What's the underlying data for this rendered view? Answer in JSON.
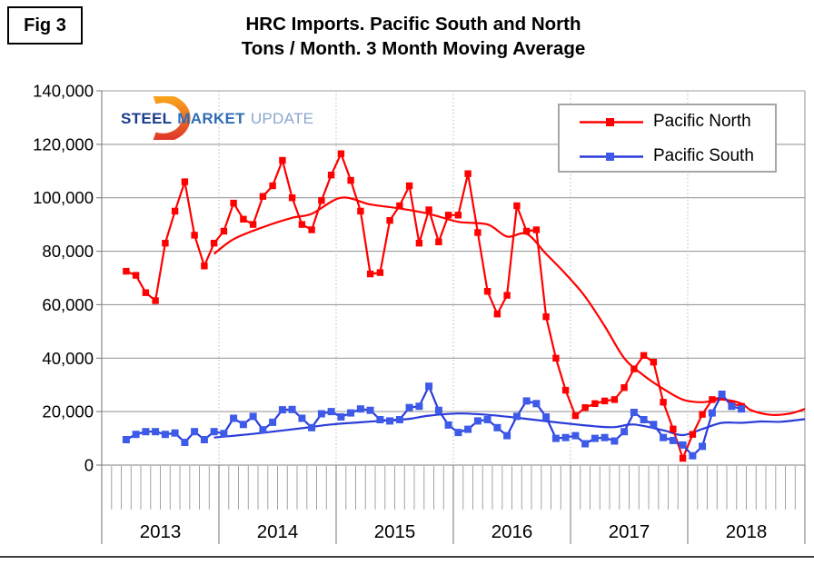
{
  "fig_label": "Fig 3",
  "title": {
    "line1": "HRC Imports. Pacific South and North",
    "line2": "Tons / Month. 3 Month Moving Average"
  },
  "logo": {
    "words": [
      {
        "text": "STEEL",
        "color": "#1B3C8C"
      },
      {
        "text": "MARKET",
        "color": "#2F6DB5"
      },
      {
        "text": "UPDATE",
        "color": "#8AA7CE"
      }
    ],
    "crescent_top_color": "#F9A21B",
    "crescent_bottom_color": "#E13A28"
  },
  "legend": {
    "items": [
      {
        "label": "Pacific North",
        "color": "#FF0000",
        "marker_color": "#FF0000"
      },
      {
        "label": "Pacific South",
        "color": "#2B3CD9",
        "marker_color": "#3D5BE8"
      }
    ]
  },
  "chart_data": {
    "type": "line",
    "title": "HRC Imports. Pacific South and North",
    "subtitle": "Tons / Month. 3 Month Moving Average",
    "ylabel": "Tons / Month",
    "ylim": [
      0,
      140000
    ],
    "y_tick_step": 20000,
    "y_tick_labels": [
      "0",
      "20,000",
      "40,000",
      "60,000",
      "80,000",
      "100,000",
      "120,000",
      "140,000"
    ],
    "year_labels": [
      "2013",
      "2014",
      "2015",
      "2016",
      "2017",
      "2018"
    ],
    "months_domain": 72,
    "grid": "horizontal solid gray every 20,000; dotted vertical year separators",
    "legend_position": "top-right",
    "series": [
      {
        "name": "Pacific North",
        "color": "#FF0000",
        "marker": "square",
        "marker_color": "#FF0000",
        "marker_size": 7.4,
        "start_month": "2013-03",
        "start_index": 2,
        "values": [
          72500,
          71000,
          64500,
          61500,
          83000,
          95000,
          106000,
          86000,
          74500,
          83000,
          87500,
          98000,
          92000,
          90000,
          100500,
          104500,
          114000,
          100000,
          90000,
          88000,
          99000,
          108500,
          116500,
          106500,
          95000,
          71500,
          72000,
          91500,
          97000,
          104500,
          83000,
          95500,
          83500,
          93500,
          93500,
          109000,
          87000,
          65000,
          56500,
          63500,
          97000,
          87500,
          88000,
          55500,
          40000,
          28000,
          18500,
          21500,
          23000,
          24000,
          24500,
          29000,
          36000,
          41000,
          38500,
          23500,
          13500,
          2500,
          11500,
          19000,
          24500,
          25500,
          23000,
          22000
        ]
      },
      {
        "name": "Pacific South",
        "color": "#2B3CD9",
        "marker": "square",
        "marker_color": "#3D5BE8",
        "marker_size": 8,
        "start_month": "2013-03",
        "start_index": 2,
        "values": [
          9500,
          11500,
          12500,
          12500,
          11500,
          12000,
          8500,
          12500,
          9500,
          12500,
          11800,
          17500,
          15200,
          18200,
          13200,
          16000,
          20700,
          20800,
          17500,
          14000,
          19200,
          20000,
          18000,
          19500,
          21000,
          20500,
          17000,
          16500,
          17000,
          21500,
          22000,
          29500,
          20500,
          15000,
          12200,
          13400,
          16500,
          17000,
          14000,
          11000,
          18200,
          24000,
          23000,
          18000,
          10000,
          10300,
          11000,
          8000,
          10000,
          10300,
          9000,
          12500,
          19700,
          17000,
          15200,
          10300,
          9200,
          7500,
          3500,
          7000,
          19500,
          26500,
          22000,
          21000
        ]
      }
    ],
    "trend_lines": [
      {
        "name": "Pacific North smoothed trend",
        "color": "#FF0000",
        "points": [
          [
            11,
            79000
          ],
          [
            13,
            84500
          ],
          [
            16,
            89000
          ],
          [
            19,
            92500
          ],
          [
            21,
            94000
          ],
          [
            24,
            100000
          ],
          [
            27,
            97500
          ],
          [
            30,
            96000
          ],
          [
            33,
            94000
          ],
          [
            36,
            91000
          ],
          [
            39,
            90000
          ],
          [
            41,
            85500
          ],
          [
            43,
            86500
          ],
          [
            45,
            79000
          ],
          [
            47,
            71500
          ],
          [
            49,
            63000
          ],
          [
            51,
            52000
          ],
          [
            53,
            40000
          ],
          [
            55,
            33500
          ],
          [
            57,
            28500
          ],
          [
            59,
            24500
          ],
          [
            61,
            23500
          ],
          [
            63,
            24500
          ],
          [
            65,
            23000
          ],
          [
            66,
            20500
          ],
          [
            68,
            18800
          ],
          [
            70,
            19300
          ],
          [
            71.5,
            21000
          ]
        ]
      },
      {
        "name": "Pacific South smoothed trend",
        "color": "#2B3CD9",
        "points": [
          [
            11,
            10300
          ],
          [
            14,
            11300
          ],
          [
            17,
            12500
          ],
          [
            20,
            13800
          ],
          [
            23,
            15200
          ],
          [
            26,
            16000
          ],
          [
            29,
            16800
          ],
          [
            31,
            17300
          ],
          [
            33,
            18500
          ],
          [
            36,
            19300
          ],
          [
            39,
            18800
          ],
          [
            42,
            17700
          ],
          [
            46,
            16000
          ],
          [
            50,
            14500
          ],
          [
            52,
            14200
          ],
          [
            54,
            15200
          ],
          [
            57,
            13000
          ],
          [
            59,
            11200
          ],
          [
            61,
            13500
          ],
          [
            63,
            15800
          ],
          [
            65,
            15800
          ],
          [
            67,
            16300
          ],
          [
            69,
            16200
          ],
          [
            71.5,
            17200
          ]
        ]
      }
    ]
  }
}
